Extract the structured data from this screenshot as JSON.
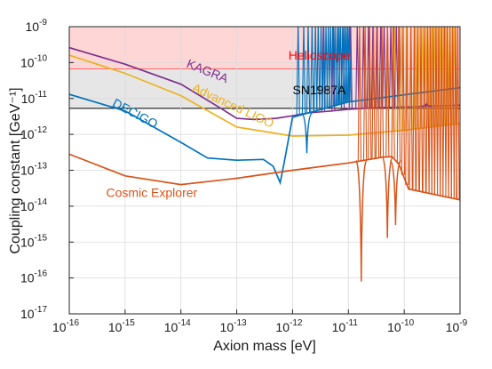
{
  "chart_data": {
    "type": "line",
    "xlabel": "Axion mass [eV]",
    "ylabel": "Coupling constant [GeV⁻¹]",
    "x_scale": "log",
    "y_scale": "log",
    "xlim": [
      1e-16,
      1e-09
    ],
    "ylim": [
      1e-17,
      1e-09
    ],
    "x_ticks": [
      -16,
      -15,
      -14,
      -13,
      -12,
      -11,
      -10,
      -9
    ],
    "y_ticks": [
      -17,
      -16,
      -15,
      -14,
      -13,
      -12,
      -11,
      -10,
      -9
    ],
    "grid": true,
    "shaded_regions": [
      {
        "name": "Helioscope",
        "y_lower": 6.6e-11,
        "y_upper": 1e-09,
        "color": "#ff0000",
        "fill": "#ffd6d6"
      },
      {
        "name": "SN1987A",
        "y_lower": 5.3e-12,
        "y_upper": 6.6e-11,
        "color": "#000000",
        "fill": "#e6e6e6"
      }
    ],
    "series": [
      {
        "name": "KAGRA",
        "color": "#7e2f8e",
        "points": [
          [
            1e-16,
            2.6e-10
          ],
          [
            1e-15,
            9e-11
          ],
          [
            1e-14,
            2.5e-11
          ],
          [
            5e-14,
            5.5e-12
          ],
          [
            1e-13,
            2.8e-12
          ],
          [
            2e-13,
            2.6e-12
          ],
          [
            5e-13,
            2.8e-12
          ],
          [
            1e-12,
            3.3e-12
          ],
          [
            2e-12,
            4e-12
          ],
          [
            5e-12,
            4.5e-12
          ],
          [
            1e-11,
            5e-12
          ],
          [
            3e-11,
            5.5e-12
          ],
          [
            1e-10,
            5.8e-12
          ],
          [
            1e-09,
            6.5e-12
          ]
        ],
        "resonances_log10_mass": [
          -11.45,
          -11.27,
          -11.1,
          -10.96,
          -10.84,
          -10.73,
          -10.64,
          -10.56,
          -10.49,
          -10.42,
          -10.36,
          -10.3,
          -10.24,
          -10.19,
          -10.14,
          -10.09
        ]
      },
      {
        "name": "Advanced LIGO",
        "color": "#edb120",
        "points": [
          [
            1e-16,
            1.6e-10
          ],
          [
            1e-15,
            5e-11
          ],
          [
            1e-14,
            1.2e-11
          ],
          [
            1e-13,
            1.6e-12
          ],
          [
            1e-12,
            9e-13
          ],
          [
            1e-11,
            9.5e-13
          ],
          [
            1e-10,
            1.3e-12
          ],
          [
            1e-09,
            2e-12
          ]
        ],
        "resonances_log10_mass": [
          -10.3,
          -10.17,
          -10.05,
          -9.96,
          -9.88,
          -9.8,
          -9.73,
          -9.67,
          -9.61,
          -9.55,
          -9.5,
          -9.45,
          -9.4,
          -9.35,
          -9.3,
          -9.26,
          -9.22,
          -9.18,
          -9.14,
          -9.1
        ]
      },
      {
        "name": "DECIGO",
        "color": "#0072bd",
        "points": [
          [
            1e-16,
            1.3e-11
          ],
          [
            1e-15,
            4.5e-12
          ],
          [
            1e-14,
            6e-13
          ],
          [
            3e-14,
            2.2e-13
          ],
          [
            1e-13,
            1.9e-13
          ],
          [
            3e-13,
            2e-13
          ],
          [
            4.5e-13,
            1.3e-13
          ],
          [
            6e-13,
            4.5e-14
          ],
          [
            7e-13,
            1.5e-13
          ],
          [
            1e-12,
            3e-12
          ],
          [
            1e-11,
            8e-12
          ],
          [
            1e-09,
            2e-11
          ]
        ],
        "resonances_log10_mass": [
          -11.9,
          -11.8,
          -11.72,
          -11.65,
          -11.59,
          -11.54,
          -11.49,
          -11.44,
          -11.4,
          -11.36,
          -11.32,
          -11.28,
          -11.24,
          -11.2,
          -11.17,
          -11.14,
          -11.1,
          -11.07,
          -11.04,
          -11.01,
          -10.98
        ]
      },
      {
        "name": "Cosmic Explorer",
        "color": "#d95319",
        "points": [
          [
            1e-16,
            2.8e-13
          ],
          [
            1e-15,
            7e-14
          ],
          [
            1e-14,
            4e-14
          ],
          [
            1e-13,
            6e-14
          ],
          [
            1e-12,
            1e-13
          ],
          [
            1e-11,
            1.6e-13
          ],
          [
            4e-11,
            2.3e-13
          ],
          [
            6e-11,
            2.4e-13
          ],
          [
            8e-11,
            1.5e-13
          ],
          [
            1.2e-10,
            3e-14
          ],
          [
            1e-09,
            1.5e-14
          ]
        ],
        "resonances_log10_mass": [
          -10.8,
          -10.7,
          -10.62,
          -10.55,
          -10.48,
          -10.4,
          -10.3,
          -10.2,
          -10.1,
          -10.02,
          -9.95,
          -9.88,
          -9.82,
          -9.76,
          -9.7,
          -9.64,
          -9.58,
          -9.53,
          -9.48,
          -9.43,
          -9.38,
          -9.33,
          -9.28,
          -9.23,
          -9.18,
          -9.13,
          -9.08,
          -9.04
        ]
      }
    ],
    "dips": [
      {
        "series": "Cosmic Explorer",
        "x": 1.7e-11,
        "y": 8e-17
      },
      {
        "series": "Cosmic Explorer",
        "x": 5e-11,
        "y": 1.3e-15
      },
      {
        "series": "Cosmic Explorer",
        "x": 7e-11,
        "y": 3e-15
      },
      {
        "series": "DECIGO",
        "x": 1.8e-12,
        "y": 3e-13
      },
      {
        "series": "KAGRA",
        "x": 2.5e-10,
        "y": 7e-12
      }
    ],
    "annotations": [
      {
        "text": "Helioscope",
        "x": 3e-12,
        "y": 1.2e-10,
        "color": "#ff0000",
        "rotate": 0
      },
      {
        "text": "KAGRA",
        "x": 2.8e-14,
        "y": 4.5e-11,
        "color": "#7e2f8e",
        "rotate": 22
      },
      {
        "text": "SN1987A",
        "x": 3e-12,
        "y": 1.3e-11,
        "color": "#000000",
        "rotate": 0
      },
      {
        "text": "Advanced LIGO",
        "x": 8e-14,
        "y": 5e-12,
        "color": "#edb120",
        "rotate": 25
      },
      {
        "text": "DECIGO",
        "x": 1.4e-15,
        "y": 3e-12,
        "color": "#0072bd",
        "rotate": 28
      },
      {
        "text": "Cosmic Explorer",
        "x": 3e-15,
        "y": 1.8e-14,
        "color": "#d95319",
        "rotate": 0
      }
    ]
  }
}
